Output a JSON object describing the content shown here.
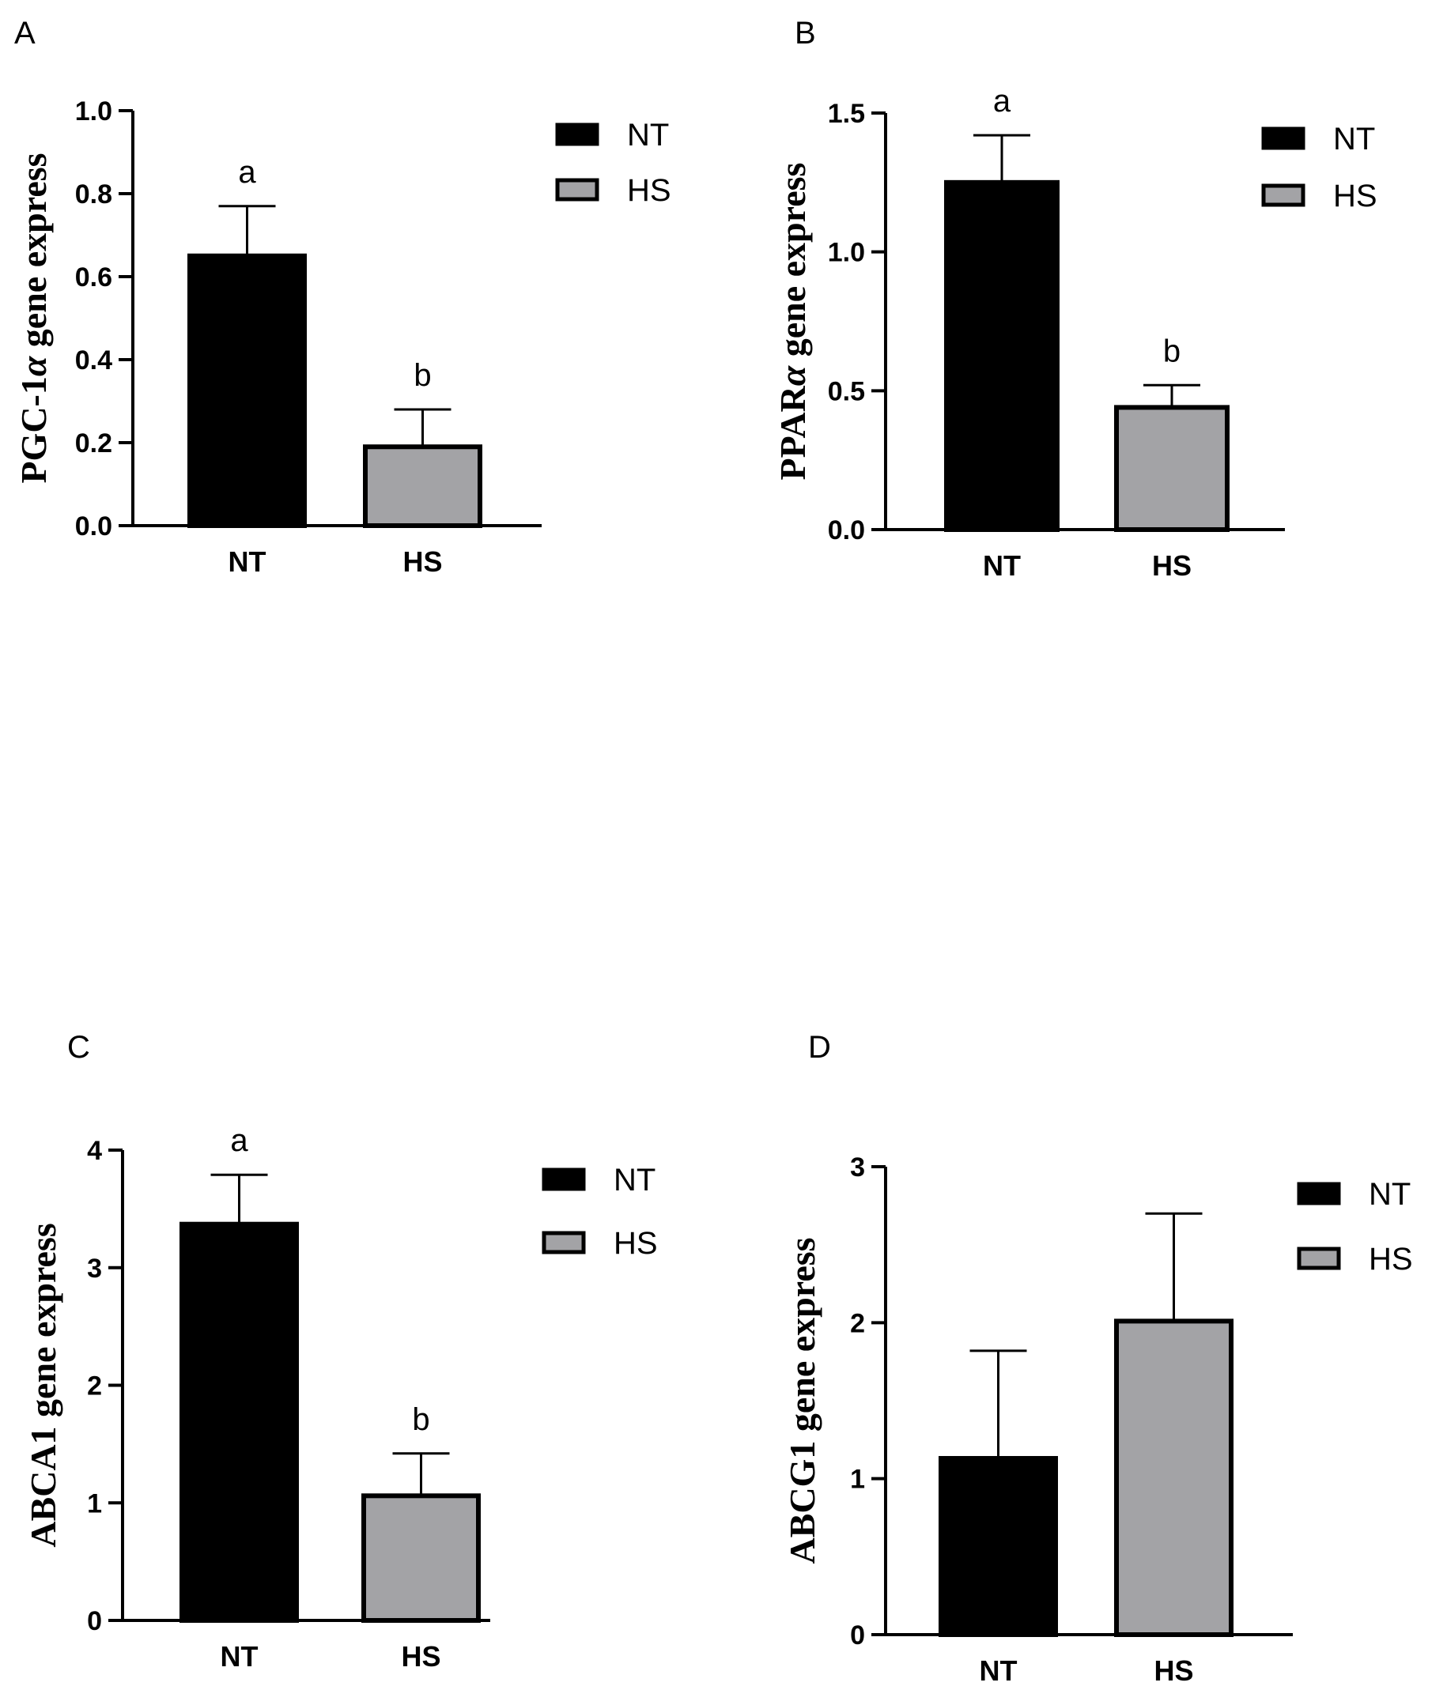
{
  "figure": {
    "colors": {
      "NT": "#000000",
      "HS": "#a3a3a6",
      "axis": "#000000"
    }
  },
  "chart_data": [
    {
      "panel": "A",
      "type": "bar",
      "categories": [
        "NT",
        "HS"
      ],
      "values": [
        0.65,
        0.19
      ],
      "errors": [
        0.12,
        0.09
      ],
      "significance": [
        "a",
        "b"
      ],
      "ylabel": [
        "PGC-1",
        "α",
        " gene express"
      ],
      "ylim": [
        0,
        1.0
      ],
      "yticks": [
        0.0,
        0.2,
        0.4,
        0.6,
        0.8,
        1.0
      ],
      "ytick_labels": [
        "0.0",
        "0.2",
        "0.4",
        "0.6",
        "0.8",
        "1.0"
      ],
      "legend": [
        "NT",
        "HS"
      ]
    },
    {
      "panel": "B",
      "type": "bar",
      "categories": [
        "NT",
        "HS"
      ],
      "values": [
        1.25,
        0.44
      ],
      "errors": [
        0.17,
        0.08
      ],
      "significance": [
        "a",
        "b"
      ],
      "ylabel": [
        "PPAR",
        "α",
        " gene express"
      ],
      "ylim": [
        0,
        1.5
      ],
      "yticks": [
        0.0,
        0.5,
        1.0,
        1.5
      ],
      "ytick_labels": [
        "0.0",
        "0.5",
        "1.0",
        "1.5"
      ],
      "legend": [
        "NT",
        "HS"
      ]
    },
    {
      "panel": "C",
      "type": "bar",
      "categories": [
        "NT",
        "HS"
      ],
      "values": [
        3.37,
        1.06
      ],
      "errors": [
        0.42,
        0.36
      ],
      "significance": [
        "a",
        "b"
      ],
      "ylabel": [
        "ABCA1 gene express",
        "",
        ""
      ],
      "ylim": [
        0,
        4
      ],
      "yticks": [
        0,
        1,
        2,
        3,
        4
      ],
      "ytick_labels": [
        "0",
        "1",
        "2",
        "3",
        "4"
      ],
      "legend": [
        "NT",
        "HS"
      ]
    },
    {
      "panel": "D",
      "type": "bar",
      "categories": [
        "NT",
        "HS"
      ],
      "values": [
        1.13,
        2.01
      ],
      "errors": [
        0.69,
        0.69
      ],
      "significance": [
        "",
        ""
      ],
      "ylabel": [
        "ABCG1 gene express",
        "",
        ""
      ],
      "ylim": [
        0,
        3
      ],
      "yticks": [
        0,
        1,
        2,
        3
      ],
      "ytick_labels": [
        "0",
        "1",
        "2",
        "3"
      ],
      "legend": [
        "NT",
        "HS"
      ]
    }
  ]
}
